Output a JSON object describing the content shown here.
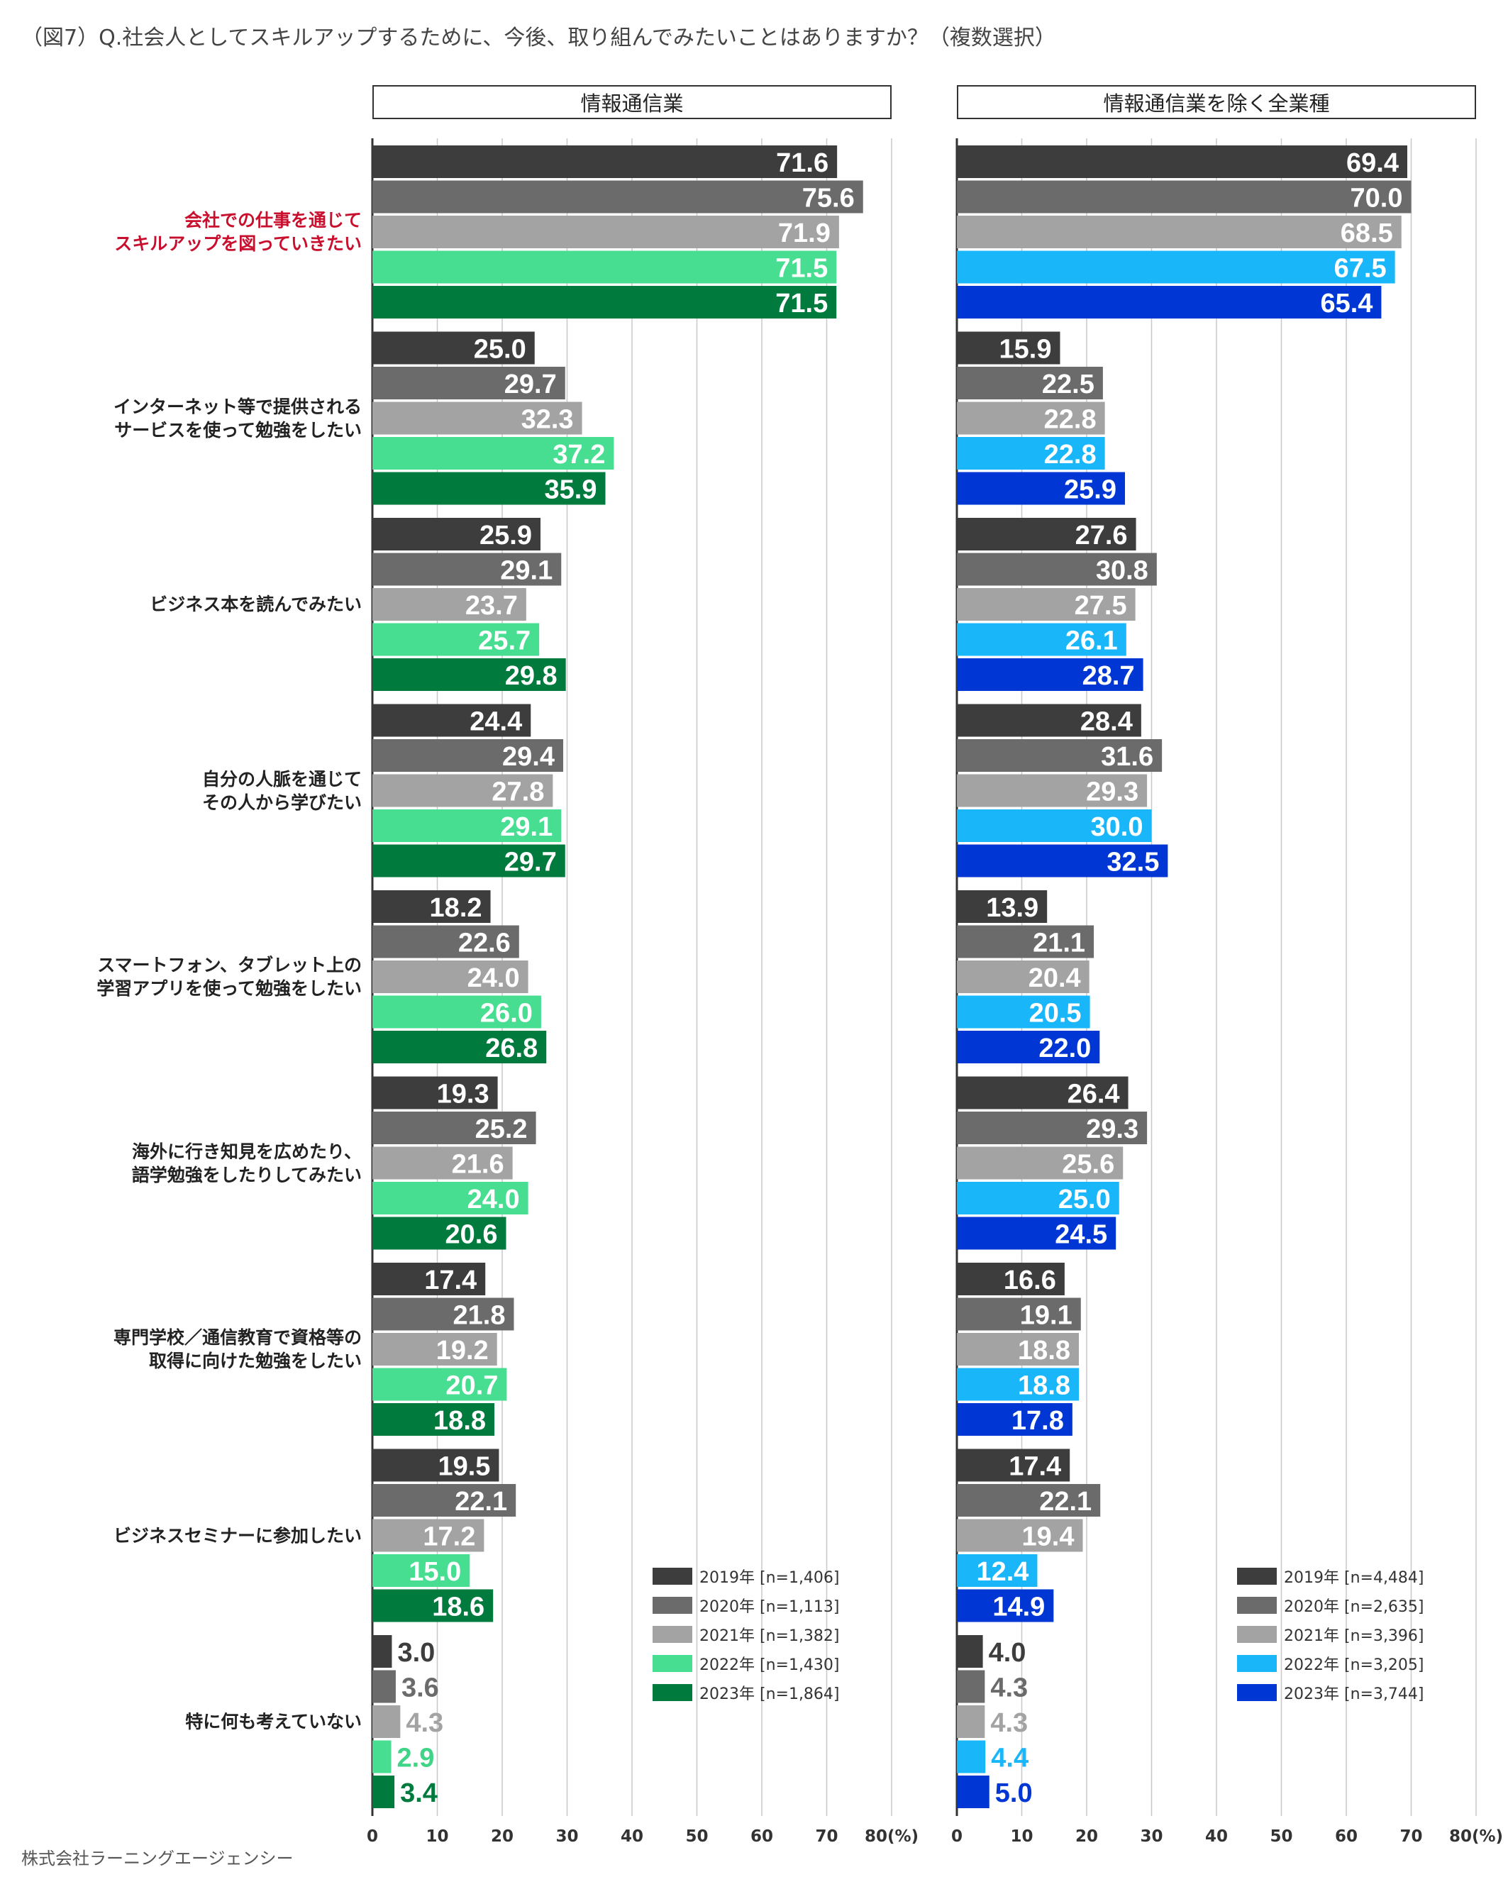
{
  "figure_title": "（図7）Q.社会人としてスキルアップするために、今後、取り組んでみたいことはありますか？（複数選択）",
  "footer": "株式会社ラーニングエージェンシー",
  "chart_data": [
    {
      "type": "bar",
      "orientation": "horizontal",
      "title": "情報通信業",
      "xlim": [
        0,
        80
      ],
      "xticks": [
        "0",
        "10",
        "20",
        "30",
        "40",
        "50",
        "60",
        "70",
        "80(%)"
      ],
      "categories": [
        [
          "会社での仕事を通じて",
          "スキルアップを図っていきたい"
        ],
        [
          "インターネット等で提供される",
          "サービスを使って勉強をしたい"
        ],
        [
          "ビジネス本を読んでみたい"
        ],
        [
          "自分の人脈を通じて",
          "その人から学びたい"
        ],
        [
          "スマートフォン、タブレット上の",
          "学習アプリを使って勉強をしたい"
        ],
        [
          "海外に行き知見を広めたり、",
          "語学勉強をしたりしてみたい"
        ],
        [
          "専門学校／通信教育で資格等の",
          "取得に向けた勉強をしたい"
        ],
        [
          "ビジネスセミナーに参加したい"
        ],
        [
          "特に何も考えていない"
        ]
      ],
      "series": [
        {
          "name": "2019年 [n=1,406]",
          "color": "#3d3d3d",
          "label_color": "#3d3d3d",
          "values": [
            71.6,
            25.0,
            25.9,
            24.4,
            18.2,
            19.3,
            17.4,
            19.5,
            3.0
          ]
        },
        {
          "name": "2020年 [n=1,113]",
          "color": "#6b6b6b",
          "label_color": "#6b6b6b",
          "values": [
            75.6,
            29.7,
            29.1,
            29.4,
            22.6,
            25.2,
            21.8,
            22.1,
            3.6
          ]
        },
        {
          "name": "2021年 [n=1,382]",
          "color": "#a3a3a3",
          "label_color": "#a3a3a3",
          "values": [
            71.9,
            32.3,
            23.7,
            27.8,
            24.0,
            21.6,
            19.2,
            17.2,
            4.3
          ]
        },
        {
          "name": "2022年 [n=1,430]",
          "color": "#47de91",
          "label_color": "#3fd487",
          "values": [
            71.5,
            37.2,
            25.7,
            29.1,
            26.0,
            24.0,
            20.7,
            15.0,
            2.9
          ]
        },
        {
          "name": "2023年 [n=1,864]",
          "color": "#007a3d",
          "label_color": "#007a3d",
          "values": [
            71.5,
            35.9,
            29.8,
            29.7,
            26.8,
            20.6,
            18.8,
            18.6,
            3.4
          ]
        }
      ]
    },
    {
      "type": "bar",
      "orientation": "horizontal",
      "title": "情報通信業を除く全業種",
      "xlim": [
        0,
        80
      ],
      "xticks": [
        "0",
        "10",
        "20",
        "30",
        "40",
        "50",
        "60",
        "70",
        "80(%)"
      ],
      "categories": [
        [
          "会社での仕事を通じて",
          "スキルアップを図っていきたい"
        ],
        [
          "インターネット等で提供される",
          "サービスを使って勉強をしたい"
        ],
        [
          "ビジネス本を読んでみたい"
        ],
        [
          "自分の人脈を通じて",
          "その人から学びたい"
        ],
        [
          "スマートフォン、タブレット上の",
          "学習アプリを使って勉強をしたい"
        ],
        [
          "海外に行き知見を広めたり、",
          "語学勉強をしたりしてみたい"
        ],
        [
          "専門学校／通信教育で資格等の",
          "取得に向けた勉強をしたい"
        ],
        [
          "ビジネスセミナーに参加したい"
        ],
        [
          "特に何も考えていない"
        ]
      ],
      "series": [
        {
          "name": "2019年 [n=4,484]",
          "color": "#3d3d3d",
          "label_color": "#3d3d3d",
          "values": [
            69.4,
            15.9,
            27.6,
            28.4,
            13.9,
            26.4,
            16.6,
            17.4,
            4.0
          ]
        },
        {
          "name": "2020年 [n=2,635]",
          "color": "#6b6b6b",
          "label_color": "#6b6b6b",
          "values": [
            70.0,
            22.5,
            30.8,
            31.6,
            21.1,
            29.3,
            19.1,
            22.1,
            4.3
          ]
        },
        {
          "name": "2021年 [n=3,396]",
          "color": "#a3a3a3",
          "label_color": "#a3a3a3",
          "values": [
            68.5,
            22.8,
            27.5,
            29.3,
            20.4,
            25.6,
            18.8,
            19.4,
            4.3
          ]
        },
        {
          "name": "2022年 [n=3,205]",
          "color": "#1ab6fa",
          "label_color": "#1ab6fa",
          "values": [
            67.5,
            22.8,
            26.1,
            30.0,
            20.5,
            25.0,
            18.8,
            12.4,
            4.4
          ]
        },
        {
          "name": "2023年 [n=3,744]",
          "color": "#0036d4",
          "label_color": "#0036d4",
          "values": [
            65.4,
            25.9,
            28.7,
            32.5,
            22.0,
            24.5,
            17.8,
            14.9,
            5.0
          ]
        }
      ]
    }
  ]
}
